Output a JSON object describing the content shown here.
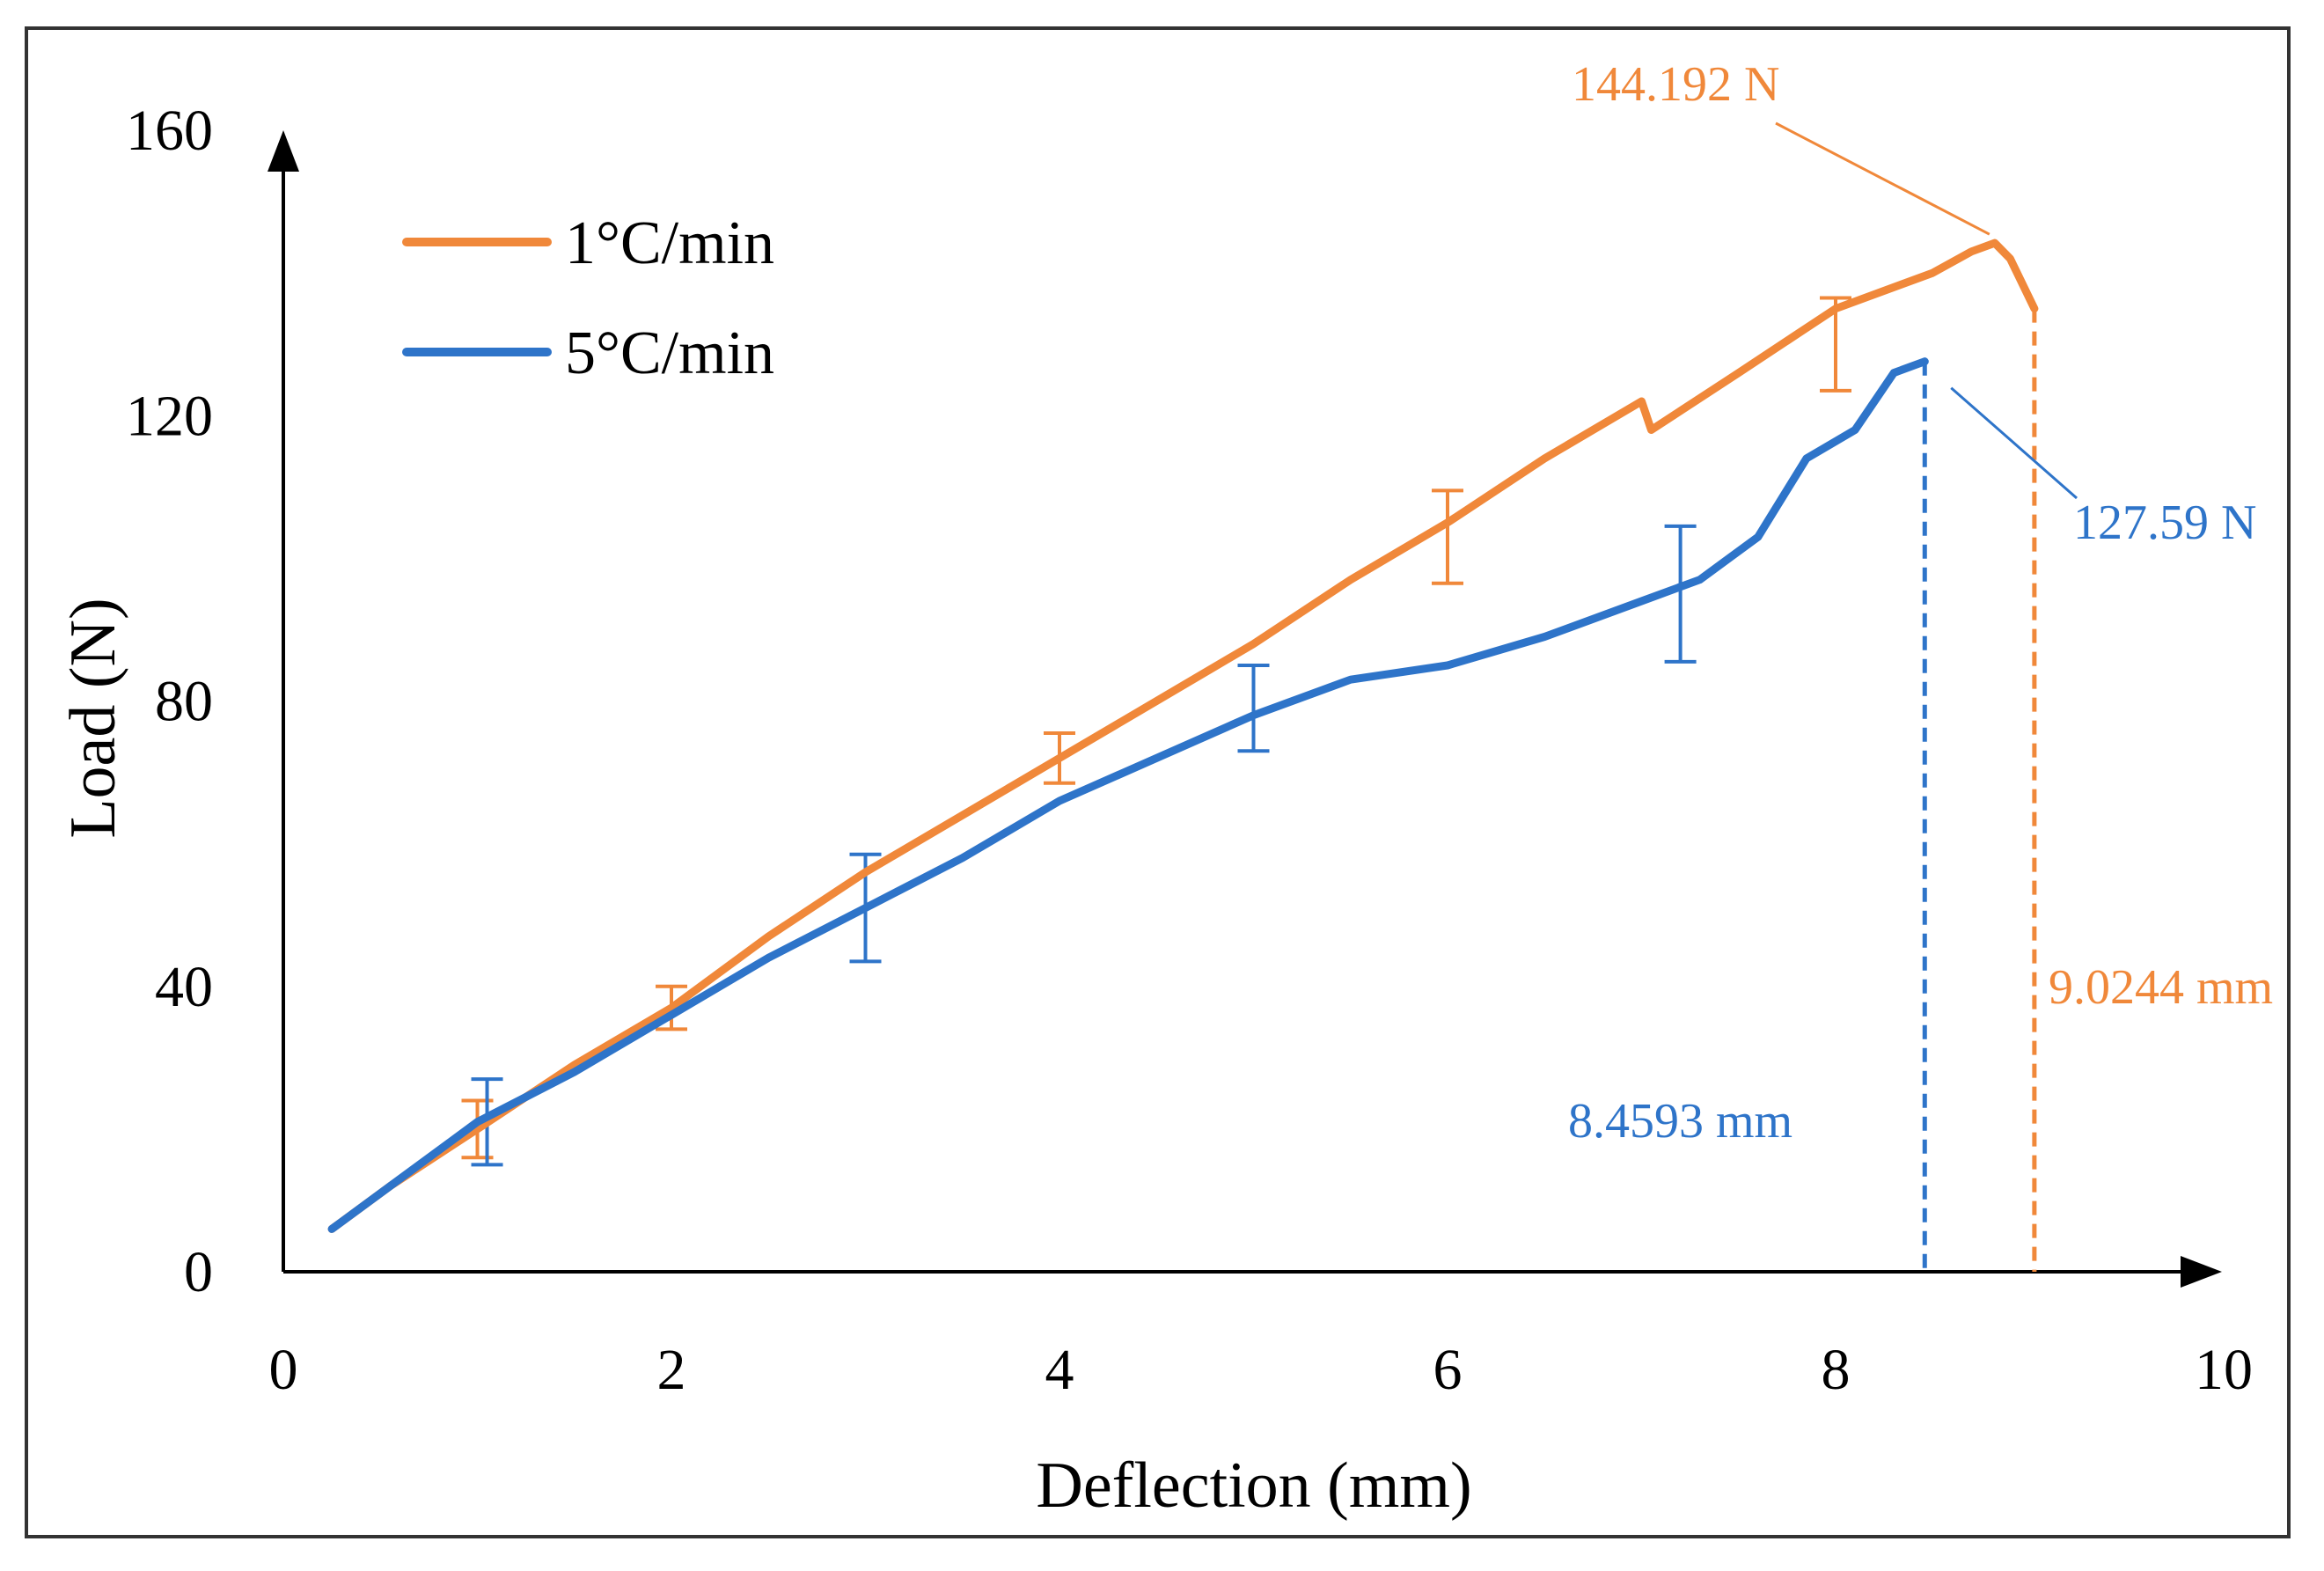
{
  "chart_data": {
    "type": "line",
    "title": "",
    "xlabel": "Deflection (mm)",
    "ylabel": "Load (N)",
    "xlim": [
      0,
      10
    ],
    "ylim": [
      0,
      160
    ],
    "x_ticks": [
      "0",
      "2",
      "4",
      "6",
      "8",
      "10"
    ],
    "y_ticks": [
      "0",
      "40",
      "80",
      "120",
      "160"
    ],
    "grid": false,
    "legend_position": "top-left",
    "colors": {
      "orange": "#F0883A",
      "blue": "#2E74C9",
      "axis": "#000000"
    },
    "series": [
      {
        "name": "1°C/min",
        "color": "#F0883A",
        "x": [
          0.25,
          0.55,
          1.0,
          1.5,
          2.0,
          2.5,
          3.0,
          3.5,
          4.0,
          4.5,
          5.0,
          5.5,
          6.0,
          6.5,
          7.0,
          7.05,
          7.5,
          8.0,
          8.5,
          8.7,
          8.82,
          8.9,
          9.0244
        ],
        "y": [
          6,
          12,
          20,
          29,
          37,
          47,
          56,
          64,
          72,
          80,
          88,
          97,
          105,
          114,
          122,
          118,
          126,
          135,
          140,
          143,
          144.192,
          142,
          135
        ],
        "error_bars": [
          {
            "x": 1.0,
            "y": 20,
            "err": 4
          },
          {
            "x": 2.0,
            "y": 37,
            "err": 3
          },
          {
            "x": 4.0,
            "y": 72,
            "err": 3.5
          },
          {
            "x": 6.0,
            "y": 103,
            "err": 6.5
          },
          {
            "x": 8.0,
            "y": 130,
            "err": 6.5
          }
        ]
      },
      {
        "name": "5°C/min",
        "color": "#2E74C9",
        "x": [
          0.25,
          0.6,
          1.0,
          1.5,
          2.0,
          2.5,
          3.0,
          3.5,
          4.0,
          4.5,
          5.0,
          5.5,
          6.0,
          6.5,
          7.0,
          7.3,
          7.6,
          7.85,
          8.1,
          8.3,
          8.4593
        ],
        "y": [
          6,
          13,
          21,
          28,
          36,
          44,
          51,
          58,
          66,
          72,
          78,
          83,
          85,
          89,
          94,
          97,
          103,
          114,
          118,
          126,
          127.59
        ],
        "error_bars": [
          {
            "x": 1.05,
            "y": 21,
            "err": 6
          },
          {
            "x": 3.0,
            "y": 51,
            "err": 7.5
          },
          {
            "x": 5.0,
            "y": 79,
            "err": 6
          },
          {
            "x": 7.2,
            "y": 95,
            "err": 9.5
          }
        ]
      }
    ],
    "annotations": [
      {
        "text": "144.192 N",
        "color": "#F0883A",
        "x": 8.82,
        "y": 144.192
      },
      {
        "text": "127.59 N",
        "color": "#2E74C9",
        "x": 8.4593,
        "y": 127.59
      },
      {
        "text": "9.0244 mm",
        "color": "#F0883A",
        "x": 9.0244,
        "y": 0
      },
      {
        "text": "8.4593 mm",
        "color": "#2E74C9",
        "x": 8.4593,
        "y": 0
      }
    ]
  }
}
